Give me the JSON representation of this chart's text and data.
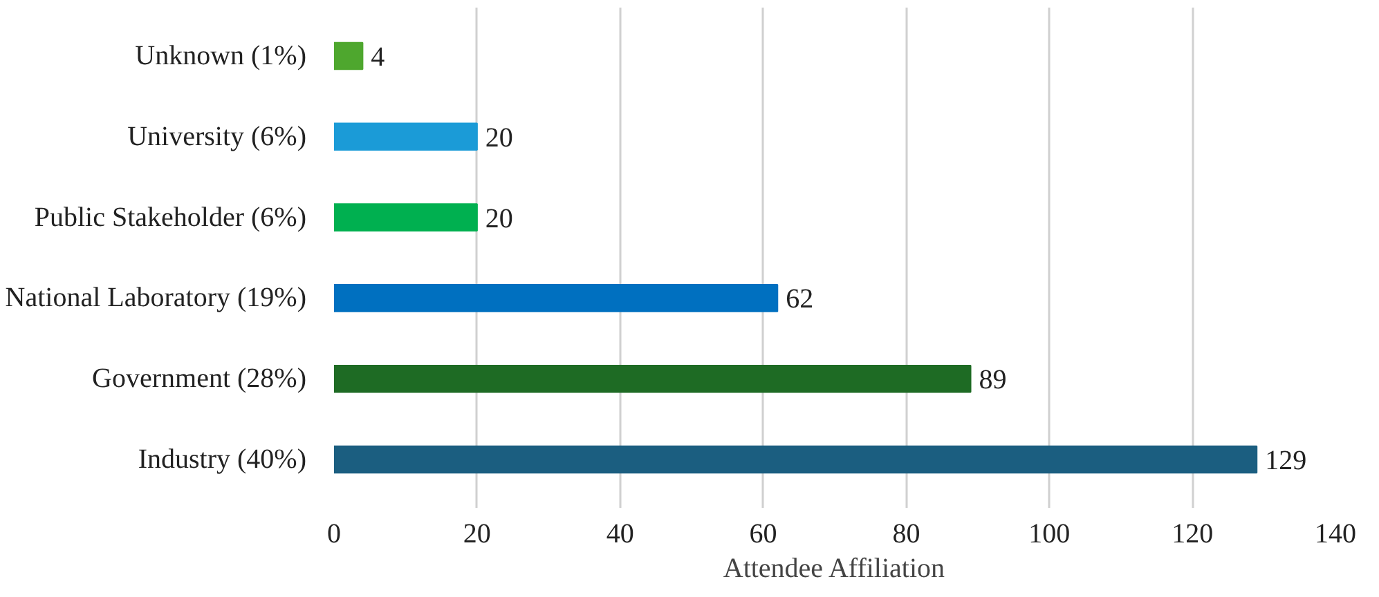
{
  "chart_data": {
    "type": "bar",
    "orientation": "horizontal",
    "xlabel": "Attendee Affiliation",
    "categories": [
      "Unknown (1%)",
      "University (6%)",
      "Public Stakeholder (6%)",
      "National Laboratory (19%)",
      "Government (28%)",
      "Industry (40%)"
    ],
    "values": [
      4,
      20,
      20,
      62,
      89,
      129
    ],
    "colors": [
      "#4ea72e",
      "#1b9bd7",
      "#00b050",
      "#0070c0",
      "#1e6b24",
      "#1b5e80"
    ],
    "xlim": [
      0,
      140
    ],
    "xticks": [
      0,
      20,
      40,
      60,
      80,
      100,
      120,
      140
    ],
    "grid": "x",
    "data_labels": true
  }
}
